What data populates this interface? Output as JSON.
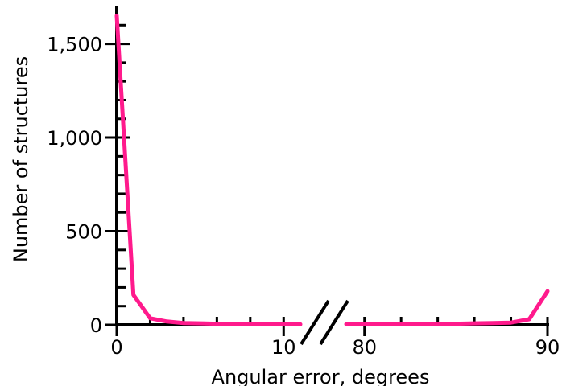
{
  "chart_data": {
    "type": "line",
    "xlabel": "Angular error, degrees",
    "ylabel": "Number of structures",
    "ylim": [
      0,
      1700
    ],
    "y_ticks": [
      {
        "value": 0,
        "label": "0"
      },
      {
        "value": 500,
        "label": "500"
      },
      {
        "value": 1000,
        "label": "1,000"
      },
      {
        "value": 1500,
        "label": "1,500"
      }
    ],
    "x_break": {
      "left_range": [
        0,
        11
      ],
      "right_range": [
        79,
        90
      ]
    },
    "x_ticks": [
      {
        "value": 0,
        "label": "0"
      },
      {
        "value": 10,
        "label": "10"
      },
      {
        "value": 80,
        "label": "80"
      },
      {
        "value": 90,
        "label": "90"
      }
    ],
    "series": [
      {
        "color": "#ff1a8c",
        "segments": [
          {
            "x": [
              0,
              1,
              2,
              3,
              4,
              5,
              6,
              7,
              8,
              9,
              10,
              11
            ],
            "y": [
              1650,
              160,
              35,
              18,
              10,
              8,
              6,
              5,
              4,
              4,
              4,
              3
            ]
          },
          {
            "x": [
              79,
              80,
              81,
              82,
              83,
              84,
              85,
              86,
              87,
              88,
              89,
              90
            ],
            "y": [
              4,
              5,
              5,
              6,
              6,
              5,
              6,
              8,
              10,
              12,
              30,
              180
            ]
          }
        ]
      }
    ],
    "grid": false,
    "legend": "none"
  }
}
